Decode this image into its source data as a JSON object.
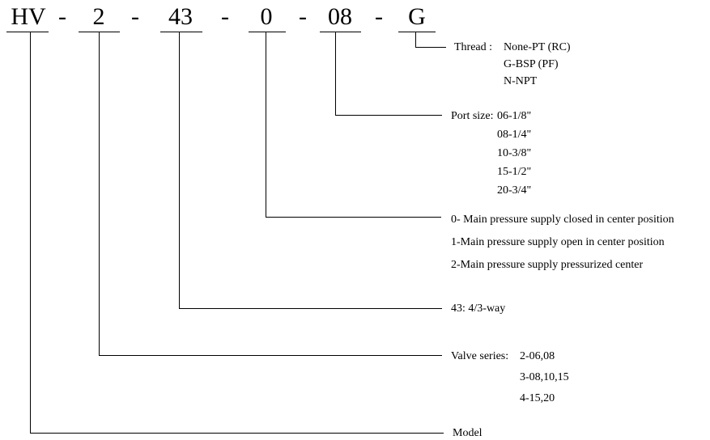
{
  "code": {
    "segments": [
      "HV",
      "2",
      "43",
      "0",
      "08",
      "G"
    ],
    "separator": "-"
  },
  "thread": {
    "heading": "Thread :",
    "options": [
      "None-PT (RC)",
      "G-BSP (PF)",
      "N-NPT"
    ]
  },
  "port_size": {
    "heading": "Port size:",
    "options": [
      "06-1/8\"",
      "08-1/4\"",
      "10-3/8\"",
      "15-1/2\"",
      "20-3/4\""
    ]
  },
  "center_position": {
    "options": [
      "0- Main pressure supply closed in center position",
      "1-Main pressure supply open in center position",
      "2-Main pressure supply pressurized center"
    ]
  },
  "way": {
    "label": "43: 4/3-way"
  },
  "valve_series": {
    "heading": "Valve series:",
    "first": "2-06,08",
    "options": [
      "3-08,10,15",
      "4-15,20"
    ]
  },
  "model": {
    "label": "Model"
  }
}
